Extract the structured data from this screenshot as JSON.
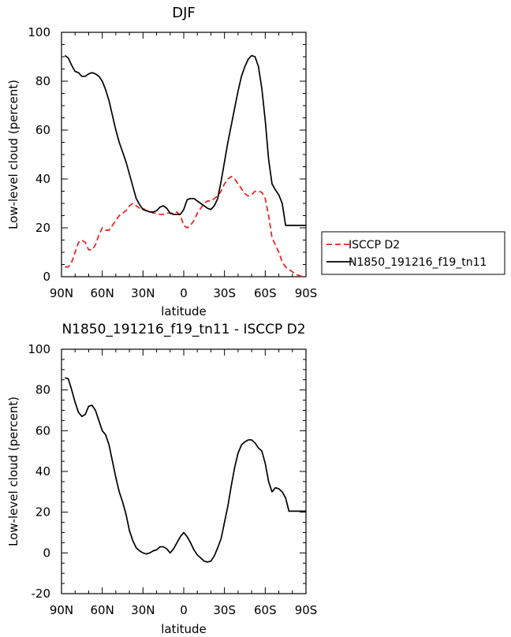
{
  "chart_data": [
    {
      "type": "line",
      "title": "DJF",
      "xlabel": "latitude",
      "ylabel": "Low-level cloud (percent)",
      "x_tick_labels": [
        "90N",
        "60N",
        "30N",
        "0",
        "30S",
        "60S",
        "90S"
      ],
      "y_tick_labels": [
        "0",
        "20",
        "40",
        "60",
        "80",
        "100"
      ],
      "xlim": [
        90,
        -90
      ],
      "ylim": [
        0,
        100
      ],
      "legend_position": "right",
      "series": [
        {
          "name": "ISCCP D2",
          "color": "#e8201c",
          "style": "dashed",
          "x": [
            87.5,
            85,
            82.5,
            80,
            77.5,
            75,
            72.5,
            70,
            67.5,
            65,
            62.5,
            60,
            57.5,
            55,
            52.5,
            50,
            47.5,
            45,
            42.5,
            40,
            37.5,
            35,
            32.5,
            30,
            27.5,
            25,
            22.5,
            20,
            17.5,
            15,
            12.5,
            10,
            7.5,
            5,
            2.5,
            0,
            -2.5,
            -5,
            -7.5,
            -10,
            -12.5,
            -15,
            -17.5,
            -20,
            -22.5,
            -25,
            -27.5,
            -30,
            -32.5,
            -35,
            -37.5,
            -40,
            -42.5,
            -45,
            -47.5,
            -50,
            -52.5,
            -55,
            -57.5,
            -60,
            -62.5,
            -65,
            -67.5,
            -70,
            -72.5,
            -75,
            -77.5,
            -80,
            -82.5,
            -85,
            -87.5,
            -90
          ],
          "y": [
            4,
            4,
            6,
            10,
            14,
            15,
            14,
            11,
            11,
            13,
            17,
            20,
            19,
            19,
            21,
            23,
            25,
            26,
            27,
            29,
            30,
            29,
            28,
            28,
            27,
            27,
            26,
            26,
            25.5,
            25.5,
            26,
            26,
            26,
            26.5,
            25,
            21,
            20,
            21,
            23,
            26,
            28,
            30,
            31,
            31,
            32,
            33,
            35,
            38,
            40,
            41,
            40,
            38,
            36,
            34,
            33,
            33.5,
            35,
            35,
            34.5,
            32,
            25,
            16,
            13,
            10,
            6,
            4,
            3,
            2,
            1,
            0.5,
            0,
            0
          ]
        },
        {
          "name": "N1850_191216_f19_tn11",
          "color": "#000000",
          "style": "solid",
          "x": [
            87.5,
            85,
            82.5,
            80,
            77.5,
            75,
            72.5,
            70,
            67.5,
            65,
            62.5,
            60,
            57.5,
            55,
            52.5,
            50,
            47.5,
            45,
            42.5,
            40,
            37.5,
            35,
            32.5,
            30,
            27.5,
            25,
            22.5,
            20,
            17.5,
            15,
            12.5,
            10,
            7.5,
            5,
            2.5,
            0,
            -2.5,
            -5,
            -7.5,
            -10,
            -12.5,
            -15,
            -17.5,
            -20,
            -22.5,
            -25,
            -27.5,
            -30,
            -32.5,
            -35,
            -37.5,
            -40,
            -42.5,
            -45,
            -47.5,
            -50,
            -52.5,
            -55,
            -57.5,
            -60,
            -62.5,
            -65,
            -67.5,
            -70,
            -72.5,
            -75,
            -77.5,
            -80,
            -82.5,
            -85,
            -87.5,
            -90
          ],
          "y": [
            90.5,
            89.5,
            86.5,
            84,
            83.5,
            82,
            82,
            83,
            83.5,
            83,
            82,
            80,
            76.5,
            72,
            66,
            60,
            55,
            51,
            47,
            42,
            37,
            32,
            29.5,
            27.5,
            27,
            26.5,
            26.5,
            27,
            28.5,
            29,
            28,
            26,
            25.5,
            25.5,
            25.5,
            27.5,
            31.5,
            32,
            32,
            31,
            30,
            29,
            28,
            27.5,
            29,
            32,
            39,
            47,
            55,
            62,
            69,
            76,
            82,
            86,
            89,
            90.5,
            90,
            86,
            77,
            64,
            48,
            38,
            35.5,
            33.5,
            30,
            21,
            21,
            21,
            21,
            21,
            21,
            21
          ]
        }
      ]
    },
    {
      "type": "line",
      "title": "N1850_191216_f19_tn11 - ISCCP D2",
      "xlabel": "latitude",
      "ylabel": "Low-level cloud (percent)",
      "x_tick_labels": [
        "90N",
        "60N",
        "30N",
        "0",
        "30S",
        "60S",
        "90S"
      ],
      "y_tick_labels": [
        "-20",
        "0",
        "20",
        "40",
        "60",
        "80",
        "100"
      ],
      "xlim": [
        90,
        -90
      ],
      "ylim": [
        -20,
        100
      ],
      "series": [
        {
          "color": "#000000",
          "style": "solid",
          "x": [
            87.5,
            85,
            82.5,
            80,
            77.5,
            75,
            72.5,
            70,
            67.5,
            65,
            62.5,
            60,
            57.5,
            55,
            52.5,
            50,
            47.5,
            45,
            42.5,
            40,
            37.5,
            35,
            32.5,
            30,
            27.5,
            25,
            22.5,
            20,
            17.5,
            15,
            12.5,
            10,
            7.5,
            5,
            2.5,
            0,
            -2.5,
            -5,
            -7.5,
            -10,
            -12.5,
            -15,
            -17.5,
            -20,
            -22.5,
            -25,
            -27.5,
            -30,
            -32.5,
            -35,
            -37.5,
            -40,
            -42.5,
            -45,
            -47.5,
            -50,
            -52.5,
            -55,
            -57.5,
            -60,
            -62.5,
            -65,
            -67.5,
            -70,
            -72.5,
            -75,
            -77.5,
            -80,
            -82.5,
            -85,
            -87.5,
            -90
          ],
          "y": [
            86,
            85.5,
            80,
            74,
            69,
            67,
            68,
            72,
            72.5,
            70,
            65,
            60,
            58,
            53,
            45,
            37,
            30,
            25,
            19,
            11,
            6,
            2.5,
            1,
            0,
            -0.5,
            0,
            1,
            1.5,
            3,
            3,
            2,
            0,
            2,
            5,
            8,
            10,
            8,
            5,
            1.5,
            -1,
            -2.5,
            -4,
            -4.5,
            -4,
            -1.5,
            2.5,
            7,
            15,
            23,
            33,
            42,
            49,
            53,
            54.5,
            55.5,
            55.5,
            54,
            51.5,
            50,
            44,
            35,
            30,
            32,
            31.5,
            30,
            27,
            20.5,
            20.5,
            20.5,
            20.5,
            20.5,
            20.5
          ]
        }
      ]
    }
  ]
}
